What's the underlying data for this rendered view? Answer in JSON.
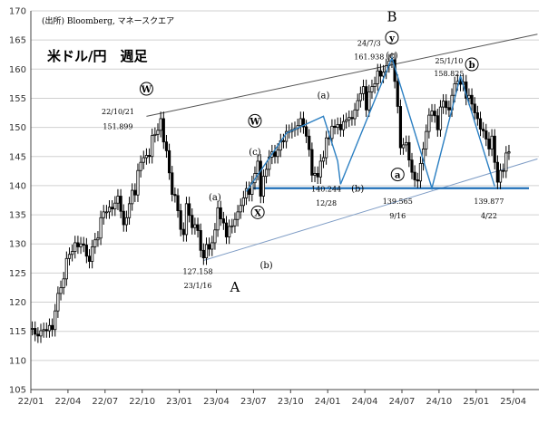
{
  "source": "(出所) Bloomberg, マネースクエア",
  "title": "米ドル/円　週足",
  "chart_data": {
    "type": "candlestick",
    "title": "米ドル/円　週足",
    "x_ticks": [
      "22/01",
      "22/04",
      "22/07",
      "22/10",
      "23/01",
      "23/04",
      "23/07",
      "23/10",
      "24/01",
      "24/04",
      "24/07",
      "24/10",
      "25/01",
      "25/04"
    ],
    "ylim": [
      105,
      170
    ],
    "y_ticks": [
      105,
      110,
      115,
      120,
      125,
      130,
      135,
      140,
      145,
      150,
      155,
      160,
      165,
      170
    ],
    "grid": "horizontal",
    "series": [
      {
        "values": [
          [
            0,
            115.5
          ],
          [
            1,
            114.5
          ],
          [
            2,
            114.2
          ],
          [
            3,
            115.1
          ],
          [
            4,
            115.3
          ],
          [
            5,
            115.1
          ],
          [
            6,
            116.0
          ],
          [
            7,
            115.3
          ],
          [
            8,
            118.5
          ],
          [
            9,
            121.5
          ],
          [
            10,
            122.5
          ],
          [
            11,
            124.0
          ],
          [
            12,
            127.5
          ],
          [
            13,
            128.2
          ],
          [
            14,
            128.7
          ],
          [
            15,
            130.2
          ],
          [
            16,
            129.5
          ],
          [
            17,
            130.0
          ],
          [
            18,
            129.8
          ],
          [
            19,
            127.9
          ],
          [
            20,
            127.0
          ],
          [
            21,
            129.5
          ],
          [
            22,
            130.7
          ],
          [
            23,
            131.0
          ],
          [
            24,
            134.5
          ],
          [
            25,
            135.5
          ],
          [
            26,
            135.5
          ],
          [
            27,
            136.3
          ],
          [
            28,
            136.0
          ],
          [
            29,
            137.0
          ],
          [
            30,
            138.2
          ],
          [
            31,
            135.6
          ],
          [
            32,
            133.3
          ],
          [
            33,
            134.5
          ],
          [
            34,
            136.9
          ],
          [
            35,
            139.2
          ],
          [
            36,
            138.4
          ],
          [
            37,
            142.6
          ],
          [
            38,
            144.0
          ],
          [
            39,
            144.8
          ],
          [
            40,
            145.2
          ],
          [
            41,
            145.0
          ],
          [
            42,
            148.6
          ],
          [
            43,
            148.8
          ],
          [
            44,
            149.5
          ],
          [
            45,
            151.5
          ],
          [
            46,
            147.5
          ],
          [
            47,
            146.0
          ],
          [
            48,
            142.2
          ],
          [
            49,
            138.5
          ],
          [
            50,
            138.3
          ],
          [
            51,
            135.7
          ],
          [
            52,
            132.5
          ],
          [
            53,
            131.6
          ],
          [
            54,
            136.9
          ],
          [
            55,
            134.9
          ],
          [
            56,
            132.8
          ],
          [
            57,
            133.3
          ],
          [
            58,
            132.3
          ],
          [
            59,
            128.9
          ],
          [
            60,
            127.6
          ],
          [
            61,
            129.9
          ],
          [
            62,
            129.1
          ],
          [
            63,
            130.2
          ],
          [
            64,
            132.4
          ],
          [
            65,
            136.2
          ],
          [
            66,
            134.3
          ],
          [
            67,
            133.6
          ],
          [
            68,
            131.2
          ],
          [
            69,
            133.0
          ],
          [
            70,
            133.1
          ],
          [
            71,
            134.2
          ],
          [
            72,
            135.5
          ],
          [
            73,
            136.6
          ],
          [
            74,
            137.9
          ],
          [
            75,
            139.5
          ],
          [
            76,
            138.5
          ],
          [
            77,
            140.5
          ],
          [
            78,
            142.1
          ],
          [
            79,
            144.2
          ],
          [
            80,
            138.2
          ],
          [
            81,
            141.6
          ],
          [
            82,
            142.8
          ],
          [
            83,
            144.9
          ],
          [
            84,
            145.8
          ],
          [
            85,
            145.0
          ],
          [
            86,
            146.1
          ],
          [
            87,
            147.7
          ],
          [
            88,
            147.6
          ],
          [
            89,
            149.3
          ],
          [
            90,
            149.3
          ],
          [
            91,
            149.6
          ],
          [
            92,
            149.8
          ],
          [
            93,
            150.3
          ],
          [
            94,
            151.5
          ],
          [
            95,
            150.1
          ],
          [
            96,
            148.5
          ],
          [
            97,
            146.2
          ],
          [
            98,
            141.8
          ],
          [
            99,
            142.1
          ],
          [
            100,
            141.5
          ],
          [
            101,
            144.2
          ],
          [
            102,
            144.8
          ],
          [
            103,
            148.2
          ],
          [
            104,
            148.1
          ],
          [
            105,
            150.2
          ],
          [
            106,
            150.0
          ],
          [
            107,
            150.5
          ],
          [
            108,
            149.6
          ],
          [
            109,
            151.0
          ],
          [
            110,
            151.3
          ],
          [
            111,
            151.7
          ],
          [
            112,
            151.5
          ],
          [
            113,
            153.0
          ],
          [
            114,
            154.6
          ],
          [
            115,
            155.8
          ],
          [
            116,
            157.0
          ],
          [
            117,
            153.0
          ],
          [
            118,
            156.1
          ],
          [
            119,
            157.0
          ],
          [
            120,
            157.5
          ],
          [
            121,
            159.7
          ],
          [
            122,
            158.8
          ],
          [
            123,
            159.5
          ],
          [
            124,
            160.6
          ],
          [
            125,
            161.4
          ],
          [
            126,
            161.6
          ],
          [
            127,
            157.9
          ],
          [
            128,
            153.6
          ],
          [
            129,
            146.5
          ],
          [
            130,
            147.0
          ],
          [
            131,
            147.4
          ],
          [
            132,
            144.4
          ],
          [
            133,
            142.3
          ],
          [
            134,
            141.0
          ],
          [
            135,
            140.8
          ],
          [
            136,
            143.8
          ],
          [
            137,
            146.3
          ],
          [
            138,
            149.3
          ],
          [
            139,
            152.1
          ],
          [
            140,
            152.8
          ],
          [
            141,
            152.0
          ],
          [
            142,
            149.6
          ],
          [
            143,
            153.5
          ],
          [
            144,
            154.5
          ],
          [
            145,
            153.4
          ],
          [
            146,
            153.0
          ],
          [
            147,
            155.5
          ],
          [
            148,
            157.5
          ],
          [
            149,
            157.9
          ],
          [
            150,
            157.4
          ],
          [
            151,
            157.8
          ],
          [
            152,
            155.0
          ],
          [
            153,
            155.5
          ],
          [
            154,
            154.0
          ],
          [
            155,
            152.5
          ],
          [
            156,
            151.5
          ],
          [
            157,
            149.7
          ],
          [
            158,
            149.4
          ],
          [
            159,
            148.0
          ],
          [
            160,
            146.3
          ],
          [
            161,
            148.5
          ],
          [
            162,
            144.0
          ],
          [
            163,
            140.6
          ],
          [
            164,
            142.6
          ],
          [
            165,
            142.5
          ],
          [
            166,
            145.6
          ],
          [
            167,
            145.8
          ]
        ]
      }
    ],
    "trendlines": [
      {
        "from": [
          40,
          151.899
        ],
        "to": [
          177,
          166.0
        ]
      },
      {
        "from": [
          60,
          127.158
        ],
        "to": [
          177,
          144.6
        ]
      },
      {
        "from": [
          77,
          139.565
        ],
        "to": [
          174,
          139.565
        ]
      }
    ],
    "wave_lines": [
      [
        [
          75,
          139.0
        ],
        [
          89,
          149.0
        ],
        [
          102,
          151.9
        ],
        [
          107,
          144.2
        ],
        [
          108,
          140.244
        ]
      ],
      [
        [
          108,
          140.244
        ],
        [
          126,
          161.938
        ],
        [
          140,
          139.565
        ],
        [
          150,
          158.825
        ],
        [
          162,
          139.877
        ]
      ]
    ],
    "annotations": [
      {
        "text": "W",
        "circled": true,
        "x": 40,
        "y": 156.0
      },
      {
        "text": "22/10/21",
        "x": 30,
        "y": 152.3
      },
      {
        "text": "151.899",
        "x": 30,
        "y": 149.7
      },
      {
        "text": "(a)",
        "x": 64,
        "y": 137.5
      },
      {
        "text": "127.158",
        "x": 58,
        "y": 124.8
      },
      {
        "text": "23/1/16",
        "x": 58,
        "y": 122.4
      },
      {
        "text": "A",
        "x": 71,
        "y": 121.8
      },
      {
        "text": "(b)",
        "x": 82,
        "y": 125.8
      },
      {
        "text": "W",
        "circled": true,
        "x": 78,
        "y": 150.5
      },
      {
        "text": "(c)",
        "x": 78,
        "y": 145.3
      },
      {
        "text": "X",
        "circled": true,
        "x": 79,
        "y": 134.8
      },
      {
        "text": "(a)",
        "x": 102,
        "y": 155.0
      },
      {
        "text": "140.244",
        "x": 103,
        "y": 139.0
      },
      {
        "text": "(b)",
        "x": 114,
        "y": 139.0
      },
      {
        "text": "12/28",
        "x": 103,
        "y": 136.6
      },
      {
        "text": "B",
        "x": 126,
        "y": 168.2
      },
      {
        "text": "y",
        "circled": true,
        "x": 126,
        "y": 164.8
      },
      {
        "text": "24/7/3",
        "x": 118,
        "y": 164.0
      },
      {
        "text": "(c)",
        "x": 126,
        "y": 161.8
      },
      {
        "text": "161.938",
        "x": 118,
        "y": 161.7
      },
      {
        "text": "a",
        "circled": true,
        "x": 128,
        "y": 141.3
      },
      {
        "text": "139.565",
        "color": "#d10000",
        "x": 128,
        "y": 136.9
      },
      {
        "text": "9/16",
        "color": "#d10000",
        "x": 128,
        "y": 134.4
      },
      {
        "text": "25/1/10",
        "x": 146,
        "y": 161.0
      },
      {
        "text": "158.825",
        "x": 146,
        "y": 158.8
      },
      {
        "text": "b",
        "circled": true,
        "x": 154,
        "y": 160.2
      },
      {
        "text": "139.877",
        "color": "#1f5fa8",
        "x": 160,
        "y": 136.9
      },
      {
        "text": "4/22",
        "color": "#1f5fa8",
        "x": 160,
        "y": 134.4
      }
    ]
  }
}
